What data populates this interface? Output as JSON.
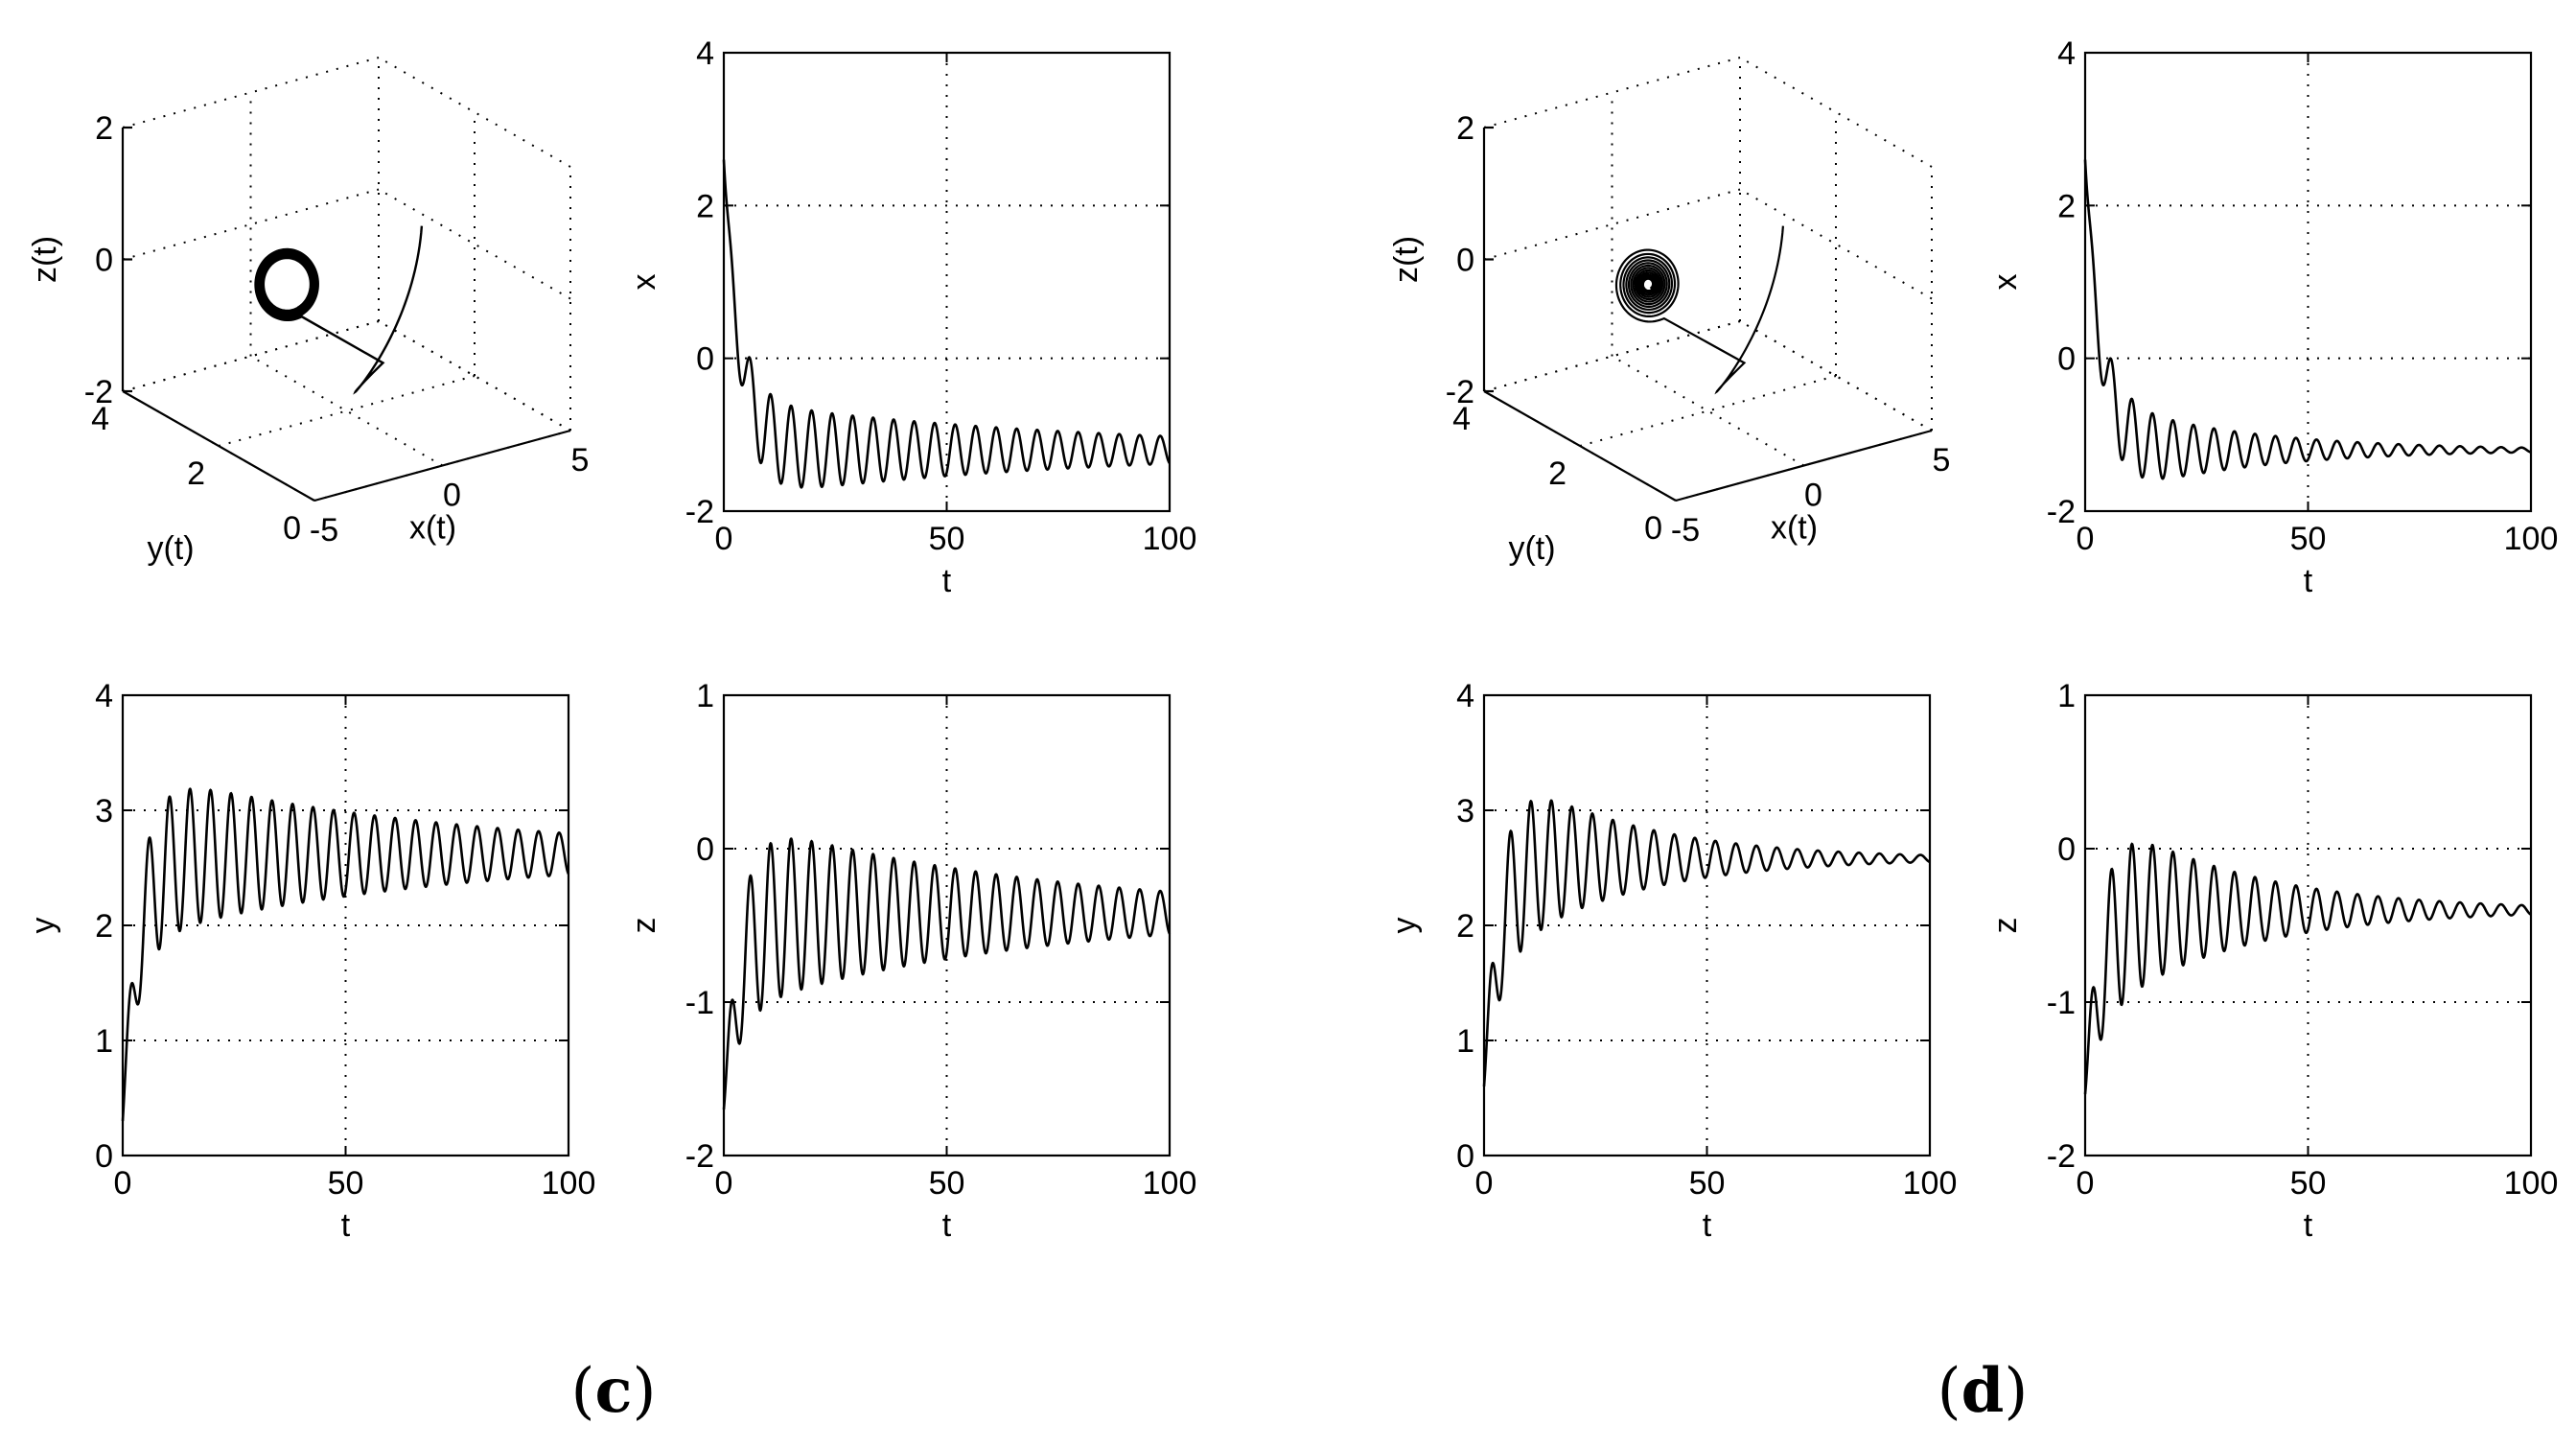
{
  "panels": [
    {
      "label": "c",
      "open": "(",
      "close": ")"
    },
    {
      "label": "d",
      "open": "(",
      "close": ")"
    }
  ],
  "chart_data": [
    {
      "id": "c-3d",
      "panel": "c",
      "type": "line",
      "projection": "3d",
      "xlabel": "x(t)",
      "ylabel": "y(t)",
      "zlabel": "z(t)",
      "xlim": [
        -5,
        5
      ],
      "ylim": [
        0,
        4
      ],
      "zlim": [
        -2,
        2
      ],
      "xticks": [
        -5,
        0,
        5
      ],
      "yticks": [
        0,
        2,
        4
      ],
      "zticks": [
        -2,
        0,
        2
      ],
      "grid": true,
      "series": [
        {
          "kind": "trajectory",
          "start": [
            2.0,
            1.5,
            0.8
          ],
          "end": [
            -1.2,
            2.6,
            -0.2
          ],
          "decay": "slow"
        }
      ]
    },
    {
      "id": "c-x",
      "panel": "c",
      "type": "line",
      "xlabel": "t",
      "ylabel": "x",
      "xlim": [
        0,
        100
      ],
      "ylim": [
        -2,
        4
      ],
      "xticks": [
        0,
        50,
        100
      ],
      "yticks": [
        -2,
        0,
        2,
        4
      ],
      "grid": true,
      "series": [
        {
          "kind": "damped_oscillation",
          "initial": 2.6,
          "mean": -1.2,
          "amplitude_start": 0.65,
          "amplitude_end": 0.18,
          "period": 4.6,
          "transient": 3.5
        }
      ]
    },
    {
      "id": "c-y",
      "panel": "c",
      "type": "line",
      "xlabel": "t",
      "ylabel": "y",
      "xlim": [
        0,
        100
      ],
      "ylim": [
        0,
        4
      ],
      "xticks": [
        0,
        50,
        100
      ],
      "yticks": [
        0,
        1,
        2,
        3,
        4
      ],
      "grid": true,
      "series": [
        {
          "kind": "damped_oscillation",
          "initial": 0.3,
          "mean": 2.62,
          "amplitude_start": 0.75,
          "amplitude_end": 0.18,
          "period": 4.6,
          "transient": 3.5
        }
      ]
    },
    {
      "id": "c-z",
      "panel": "c",
      "type": "line",
      "xlabel": "t",
      "ylabel": "z",
      "xlim": [
        0,
        100
      ],
      "ylim": [
        -2,
        1
      ],
      "xticks": [
        0,
        50,
        100
      ],
      "yticks": [
        -2,
        -1,
        0,
        1
      ],
      "grid": true,
      "series": [
        {
          "kind": "damped_oscillation",
          "initial": -1.7,
          "mean": -0.42,
          "amplitude_start": 0.64,
          "amplitude_end": 0.14,
          "period": 4.6,
          "transient": 3.5
        }
      ]
    },
    {
      "id": "d-3d",
      "panel": "d",
      "type": "line",
      "projection": "3d",
      "xlabel": "x(t)",
      "ylabel": "y(t)",
      "zlabel": "z(t)",
      "xlim": [
        -5,
        5
      ],
      "ylim": [
        0,
        4
      ],
      "zlim": [
        -2,
        2
      ],
      "xticks": [
        -5,
        0,
        5
      ],
      "yticks": [
        0,
        2,
        4
      ],
      "zticks": [
        -2,
        0,
        2
      ],
      "grid": true,
      "series": [
        {
          "kind": "trajectory",
          "start": [
            2.0,
            1.5,
            0.8
          ],
          "end": [
            -1.2,
            2.6,
            -0.2
          ],
          "decay": "fast"
        }
      ]
    },
    {
      "id": "d-x",
      "panel": "d",
      "type": "line",
      "xlabel": "t",
      "ylabel": "x",
      "xlim": [
        0,
        100
      ],
      "ylim": [
        -2,
        4
      ],
      "xticks": [
        0,
        50,
        100
      ],
      "yticks": [
        -2,
        0,
        2,
        4
      ],
      "grid": true,
      "series": [
        {
          "kind": "damped_oscillation",
          "initial": 2.6,
          "mean": -1.2,
          "amplitude_start": 0.7,
          "amplitude_end": 0.03,
          "period": 4.6,
          "transient": 3.5
        }
      ]
    },
    {
      "id": "d-y",
      "panel": "d",
      "type": "line",
      "xlabel": "t",
      "ylabel": "y",
      "xlim": [
        0,
        100
      ],
      "ylim": [
        0,
        4
      ],
      "xticks": [
        0,
        50,
        100
      ],
      "yticks": [
        0,
        1,
        2,
        3,
        4
      ],
      "grid": true,
      "series": [
        {
          "kind": "damped_oscillation",
          "initial": 0.6,
          "mean": 2.58,
          "amplitude_start": 0.9,
          "amplitude_end": 0.03,
          "period": 4.6,
          "transient": 3.5
        }
      ]
    },
    {
      "id": "d-z",
      "panel": "d",
      "type": "line",
      "xlabel": "t",
      "ylabel": "z",
      "xlim": [
        0,
        100
      ],
      "ylim": [
        -2,
        1
      ],
      "xticks": [
        0,
        50,
        100
      ],
      "yticks": [
        -2,
        -1,
        0,
        1
      ],
      "grid": true,
      "series": [
        {
          "kind": "damped_oscillation",
          "initial": -1.6,
          "mean": -0.4,
          "amplitude_start": 0.72,
          "amplitude_end": 0.03,
          "period": 4.6,
          "transient": 3.5
        }
      ]
    }
  ]
}
